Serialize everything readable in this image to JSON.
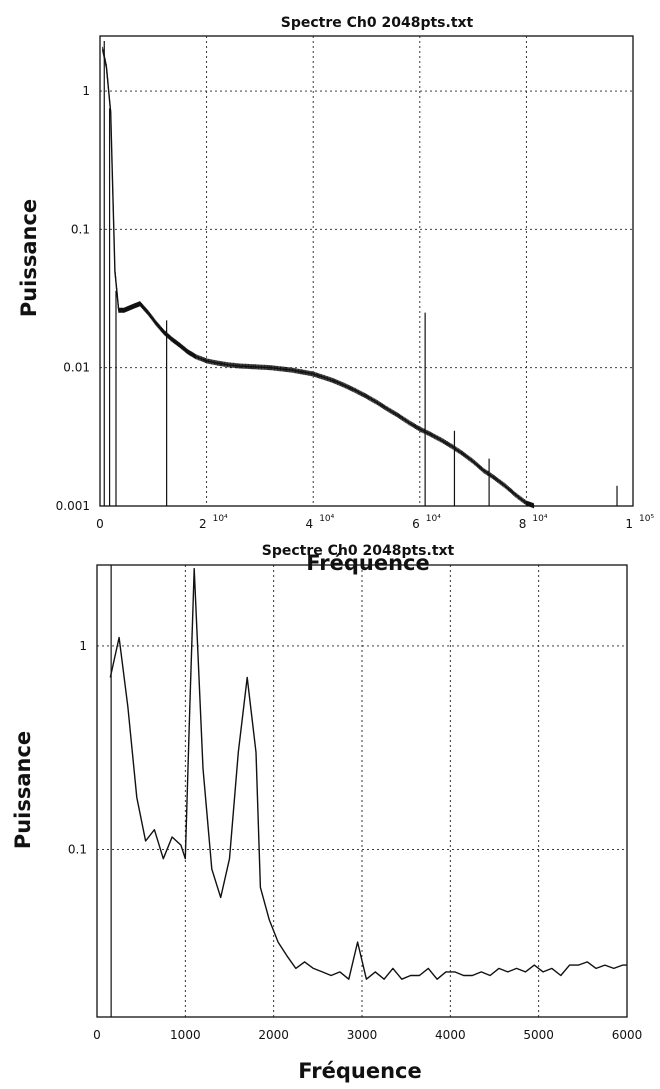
{
  "chart_data": [
    {
      "type": "line",
      "title": "Spectre   Ch0   2048pts.txt",
      "xlabel": "Fréquence",
      "ylabel": "Puissance",
      "xlim": [
        0,
        100000
      ],
      "ylim": [
        0.001,
        2.5
      ],
      "yscale": "log",
      "grid": true,
      "x_ticks": [
        {
          "value": 0,
          "label": "0",
          "sup": ""
        },
        {
          "value": 20000,
          "label": "2",
          "sup": "10⁴"
        },
        {
          "value": 40000,
          "label": "4",
          "sup": "10⁴"
        },
        {
          "value": 60000,
          "label": "6",
          "sup": "10⁴"
        },
        {
          "value": 80000,
          "label": "8",
          "sup": "10⁴"
        },
        {
          "value": 100000,
          "label": "1",
          "sup": "10⁵"
        }
      ],
      "y_ticks": [
        {
          "value": 1,
          "label": "1"
        },
        {
          "value": 0.1,
          "label": "0.1"
        },
        {
          "value": 0.01,
          "label": "0.01"
        },
        {
          "value": 0.001,
          "label": "0.001"
        }
      ],
      "series": [
        {
          "x": [
            500,
            1200,
            2000,
            2800,
            3500,
            4500,
            5500,
            6500,
            7500,
            9000,
            10500,
            12000,
            13500,
            15000,
            16500,
            18000,
            20000,
            22000,
            24000,
            26000,
            28000,
            30000,
            32000,
            34000,
            36000,
            38000,
            40000,
            42000,
            44000,
            46000,
            48000,
            50000,
            52000,
            54000,
            56000,
            58000,
            60000,
            62000,
            64000,
            66000,
            68000,
            70000,
            72000,
            74000,
            76000,
            78000,
            80000,
            81500
          ],
          "y": [
            2.0,
            1.5,
            0.7,
            0.05,
            0.026,
            0.026,
            0.027,
            0.028,
            0.029,
            0.025,
            0.021,
            0.018,
            0.016,
            0.0145,
            0.013,
            0.012,
            0.0112,
            0.0108,
            0.0105,
            0.0103,
            0.0102,
            0.0101,
            0.01,
            0.0098,
            0.0096,
            0.0093,
            0.009,
            0.0085,
            0.008,
            0.0074,
            0.0068,
            0.0062,
            0.0056,
            0.005,
            0.0045,
            0.004,
            0.0036,
            0.0033,
            0.003,
            0.0027,
            0.0024,
            0.0021,
            0.0018,
            0.0016,
            0.0014,
            0.0012,
            0.00105,
            0.001
          ]
        }
      ],
      "spikes": [
        {
          "x": 800,
          "y": 2.3
        },
        {
          "x": 1800,
          "y": 0.75
        },
        {
          "x": 3000,
          "y": 0.036
        },
        {
          "x": 12500,
          "y": 0.022
        },
        {
          "x": 61000,
          "y": 0.025
        },
        {
          "x": 66500,
          "y": 0.0035
        },
        {
          "x": 73000,
          "y": 0.0022
        },
        {
          "x": 97000,
          "y": 0.0014
        }
      ]
    },
    {
      "type": "line",
      "title": "Spectre   Ch0   2048pts.txt",
      "xlabel": "Fréquence",
      "ylabel": "Puissance",
      "xlim": [
        0,
        6000
      ],
      "ylim": [
        0.015,
        2.5
      ],
      "yscale": "log",
      "grid": true,
      "x_ticks": [
        {
          "value": 0,
          "label": "0",
          "sup": ""
        },
        {
          "value": 1000,
          "label": "1000",
          "sup": ""
        },
        {
          "value": 2000,
          "label": "2000",
          "sup": ""
        },
        {
          "value": 3000,
          "label": "3000",
          "sup": ""
        },
        {
          "value": 4000,
          "label": "4000",
          "sup": ""
        },
        {
          "value": 5000,
          "label": "5000",
          "sup": ""
        },
        {
          "value": 6000,
          "label": "6000",
          "sup": ""
        }
      ],
      "y_ticks": [
        {
          "value": 1,
          "label": "1"
        },
        {
          "value": 0.1,
          "label": "0.1"
        }
      ],
      "series": [
        {
          "x": [
            150,
            250,
            350,
            450,
            550,
            650,
            750,
            850,
            950,
            1000,
            1050,
            1100,
            1200,
            1300,
            1400,
            1500,
            1600,
            1700,
            1800,
            1850,
            1950,
            2050,
            2150,
            2250,
            2350,
            2450,
            2550,
            2650,
            2750,
            2850,
            2950,
            3050,
            3150,
            3250,
            3350,
            3450,
            3550,
            3650,
            3750,
            3850,
            3950,
            4050,
            4150,
            4250,
            4350,
            4450,
            4550,
            4650,
            4750,
            4850,
            4950,
            5050,
            5150,
            5250,
            5350,
            5450,
            5550,
            5650,
            5750,
            5850,
            5950,
            6000
          ],
          "y": [
            0.7,
            1.1,
            0.5,
            0.18,
            0.11,
            0.125,
            0.09,
            0.115,
            0.105,
            0.09,
            0.5,
            2.4,
            0.25,
            0.08,
            0.058,
            0.09,
            0.3,
            0.7,
            0.3,
            0.065,
            0.045,
            0.035,
            0.03,
            0.026,
            0.028,
            0.026,
            0.025,
            0.024,
            0.025,
            0.023,
            0.035,
            0.023,
            0.025,
            0.023,
            0.026,
            0.023,
            0.024,
            0.024,
            0.026,
            0.023,
            0.025,
            0.025,
            0.024,
            0.024,
            0.025,
            0.024,
            0.026,
            0.025,
            0.026,
            0.025,
            0.027,
            0.025,
            0.026,
            0.024,
            0.027,
            0.027,
            0.028,
            0.026,
            0.027,
            0.026,
            0.027,
            0.027
          ]
        }
      ],
      "spikes": [
        {
          "x": 160,
          "y": 2.5
        }
      ]
    }
  ]
}
